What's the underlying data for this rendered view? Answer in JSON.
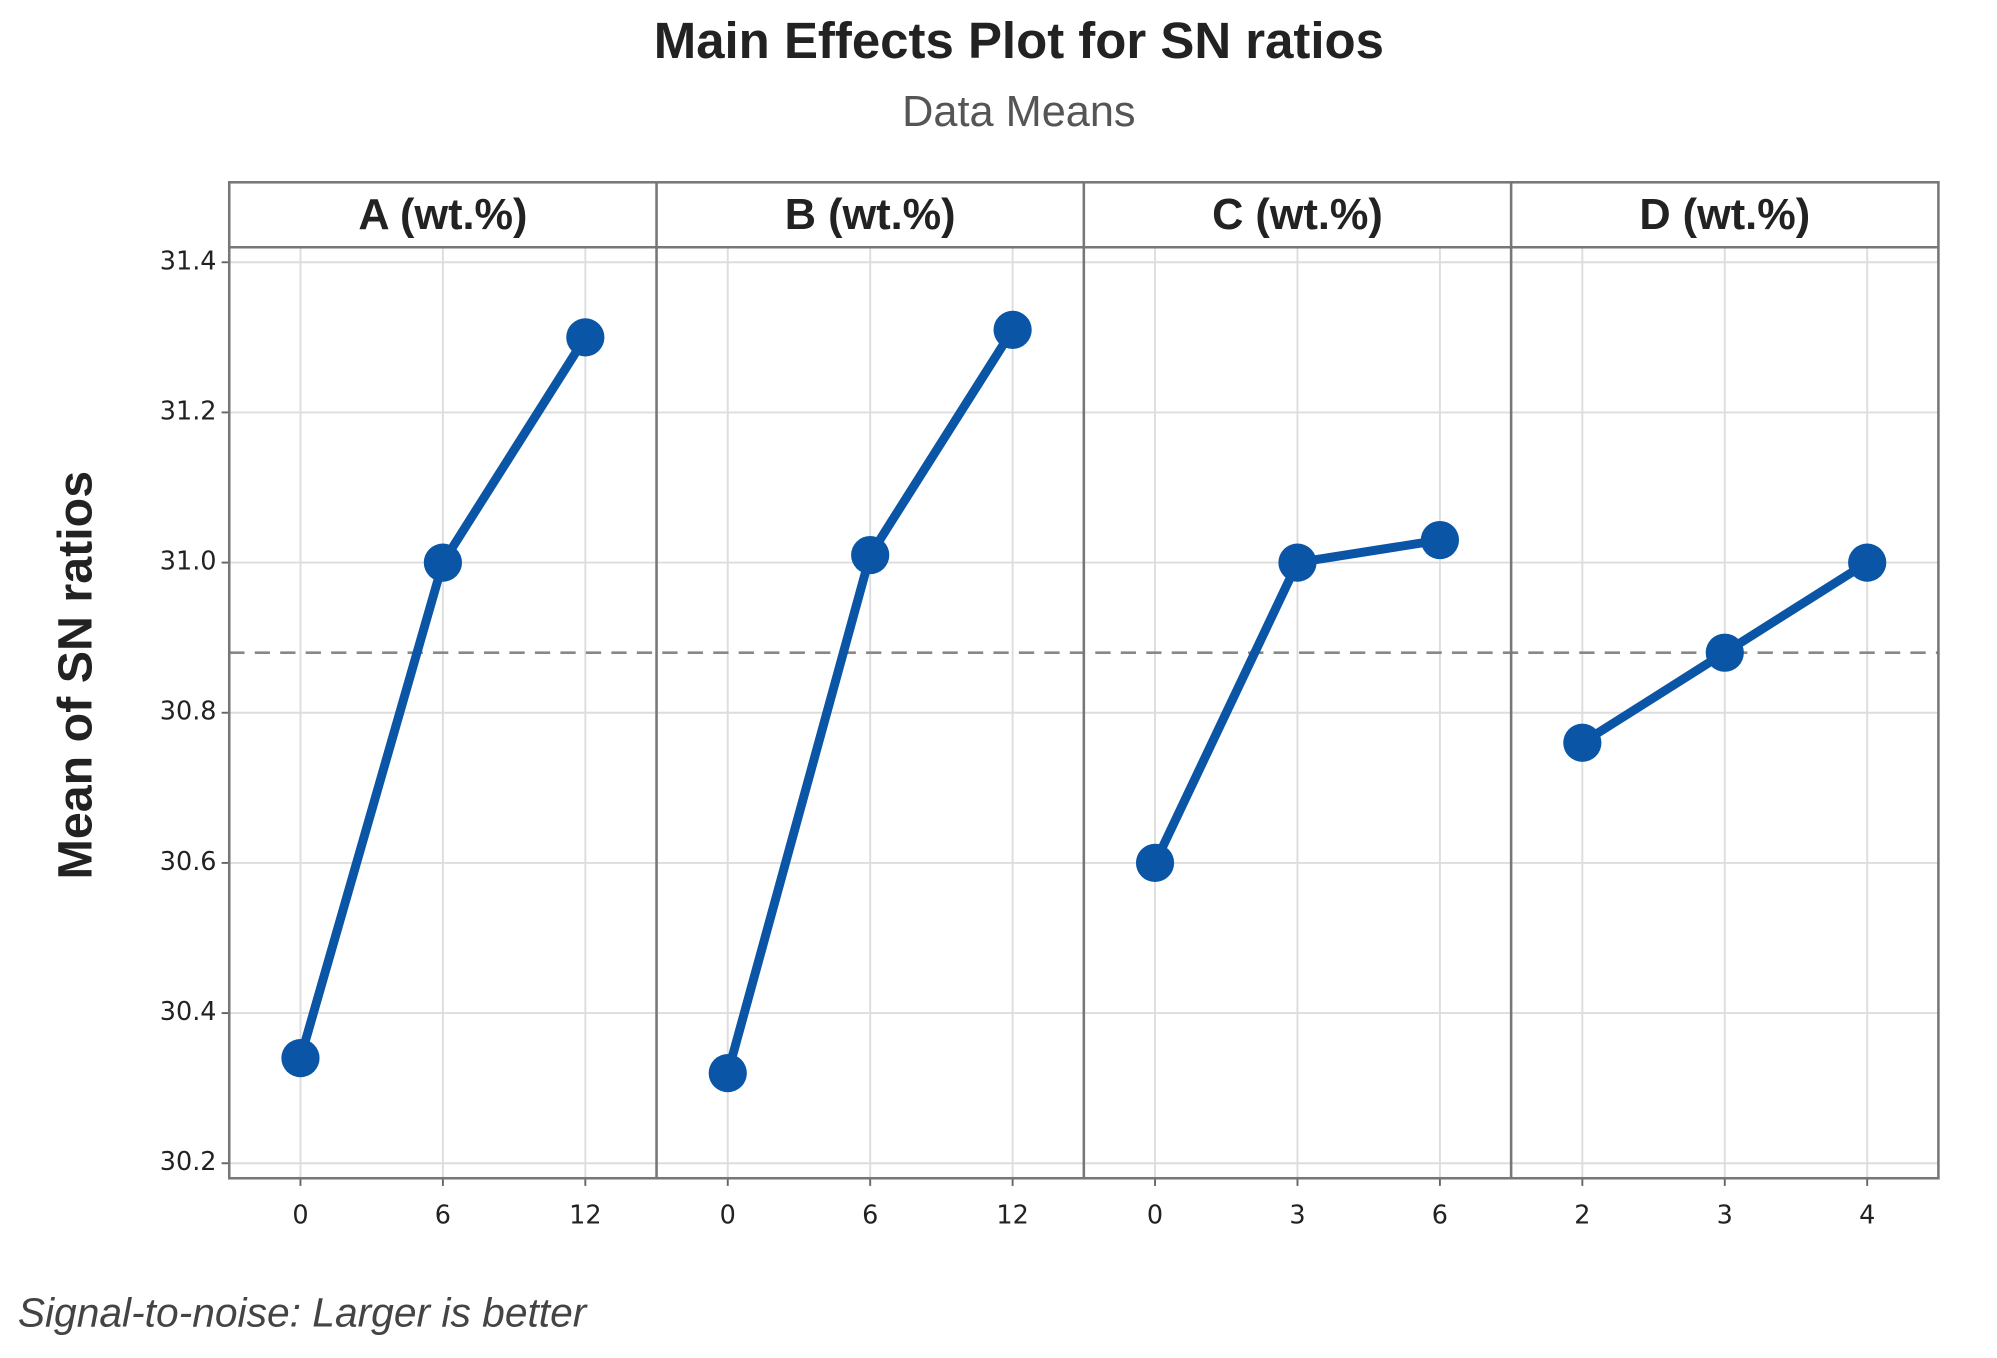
{
  "chart_data": {
    "type": "line",
    "title": "Main Effects Plot for SN ratios",
    "subtitle": "Data Means",
    "y_label": "Mean of SN ratios",
    "footnote": "Signal-to-noise: Larger is better",
    "color": "#0a55a5",
    "grid": true,
    "ylim": [
      30.18,
      31.42
    ],
    "yticks": [
      30.2,
      30.4,
      30.6,
      30.8,
      {
        "value": 31,
        "label": "31.0"
      },
      31.2,
      31.4
    ],
    "reference_line": 30.88,
    "panels": [
      {
        "title": "A (wt.%)",
        "categories": [
          "0",
          "6",
          "12"
        ],
        "values": [
          30.34,
          31.0,
          31.3
        ]
      },
      {
        "title": "B (wt.%)",
        "categories": [
          "0",
          "6",
          "12"
        ],
        "values": [
          30.32,
          31.01,
          31.31
        ]
      },
      {
        "title": "C (wt.%)",
        "categories": [
          "0",
          "3",
          "6"
        ],
        "values": [
          30.6,
          31.0,
          31.03
        ]
      },
      {
        "title": "D (wt.%)",
        "categories": [
          "2",
          "3",
          "4"
        ],
        "values": [
          30.76,
          30.88,
          31.0
        ]
      }
    ]
  }
}
